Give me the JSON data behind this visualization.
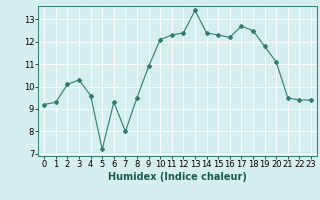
{
  "x": [
    0,
    1,
    2,
    3,
    4,
    5,
    6,
    7,
    8,
    9,
    10,
    11,
    12,
    13,
    14,
    15,
    16,
    17,
    18,
    19,
    20,
    21,
    22,
    23
  ],
  "y": [
    9.2,
    9.3,
    10.1,
    10.3,
    9.6,
    7.2,
    9.3,
    8.0,
    9.5,
    10.9,
    12.1,
    12.3,
    12.4,
    13.4,
    12.4,
    12.3,
    12.2,
    12.7,
    12.5,
    11.8,
    11.1,
    9.5,
    9.4,
    9.4
  ],
  "line_color": "#2e7d6e",
  "marker": "D",
  "marker_size": 2,
  "bg_color": "#d6eeee",
  "grid_color": "#ffffff",
  "xlabel": "Humidex (Indice chaleur)",
  "xlim": [
    -0.5,
    23.5
  ],
  "ylim": [
    6.9,
    13.6
  ],
  "yticks": [
    7,
    8,
    9,
    10,
    11,
    12,
    13
  ],
  "xticks": [
    0,
    1,
    2,
    3,
    4,
    5,
    6,
    7,
    8,
    9,
    10,
    11,
    12,
    13,
    14,
    15,
    16,
    17,
    18,
    19,
    20,
    21,
    22,
    23
  ],
  "xlabel_fontsize": 7,
  "tick_fontsize": 6
}
